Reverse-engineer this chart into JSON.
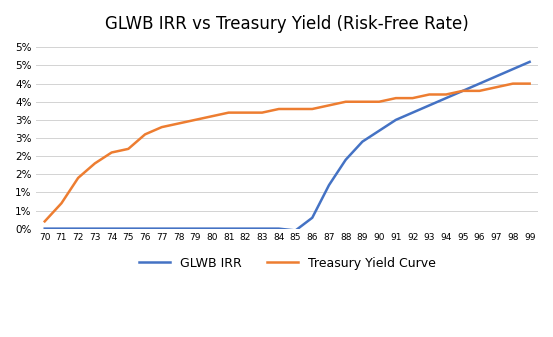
{
  "title": "GLWB IRR vs Treasury Yield (Risk-Free Rate)",
  "x_labels": [
    "70",
    "71",
    "72",
    "73",
    "74",
    "75",
    "76",
    "77",
    "78",
    "79",
    "80",
    "81",
    "82",
    "83",
    "84",
    "85",
    "86",
    "87",
    "88",
    "89",
    "90",
    "91",
    "92",
    "93",
    "94",
    "95",
    "96",
    "97",
    "98",
    "99"
  ],
  "x_values": [
    70,
    71,
    72,
    73,
    74,
    75,
    76,
    77,
    78,
    79,
    80,
    81,
    82,
    83,
    84,
    85,
    86,
    87,
    88,
    89,
    90,
    91,
    92,
    93,
    94,
    95,
    96,
    97,
    98,
    99
  ],
  "glwb_irr": [
    0.0,
    0.0,
    0.0,
    0.0,
    0.0,
    0.0,
    0.0,
    0.0,
    0.0,
    0.0,
    0.0,
    0.0,
    0.0,
    0.0,
    0.0,
    -0.0005,
    0.003,
    0.012,
    0.019,
    0.024,
    0.027,
    0.03,
    0.032,
    0.034,
    0.036,
    0.038,
    0.04,
    0.042,
    0.044,
    0.046
  ],
  "treasury_yield": [
    0.002,
    0.007,
    0.014,
    0.018,
    0.021,
    0.022,
    0.026,
    0.028,
    0.029,
    0.03,
    0.031,
    0.032,
    0.032,
    0.032,
    0.033,
    0.033,
    0.033,
    0.034,
    0.035,
    0.035,
    0.035,
    0.036,
    0.036,
    0.037,
    0.037,
    0.038,
    0.038,
    0.039,
    0.04,
    0.04
  ],
  "glwb_color": "#4472C4",
  "treasury_color": "#ED7D31",
  "legend_labels": [
    "GLWB IRR",
    "Treasury Yield Curve"
  ],
  "ylim": [
    0.0,
    0.052
  ],
  "yticks": [
    0.0,
    0.005,
    0.01,
    0.015,
    0.02,
    0.025,
    0.03,
    0.035,
    0.04,
    0.045,
    0.05
  ],
  "ytick_labels": [
    "0%",
    "1%",
    "1%",
    "2%",
    "2%",
    "3%",
    "3%",
    "4%",
    "4%",
    "5%",
    "5%"
  ],
  "background_color": "#FFFFFF",
  "grid_color": "#D3D3D3",
  "title_fontsize": 12,
  "legend_fontsize": 9,
  "line_width": 1.8
}
